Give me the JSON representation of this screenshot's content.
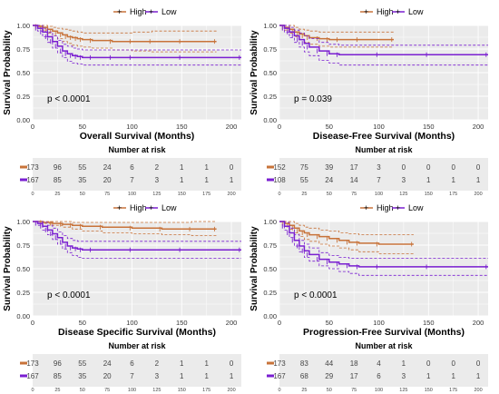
{
  "legend": {
    "entries": [
      {
        "label": "High",
        "color": "#c8733a"
      },
      {
        "label": "Low",
        "color": "#7a1fd1"
      }
    ]
  },
  "risk_table_title": "Number at risk",
  "chart_data": [
    {
      "type": "line",
      "title": "",
      "xlabel": "Overall Survival (Months)",
      "ylabel": "Survival Probability",
      "xlim": [
        0,
        210
      ],
      "ylim": [
        0,
        1.0
      ],
      "x_ticks": [
        0,
        50,
        100,
        150,
        200
      ],
      "y_ticks": [
        "0.00",
        "0.25",
        "0.50",
        "0.75",
        "1.00"
      ],
      "p_value": "p < 0.0001",
      "series": [
        {
          "name": "High",
          "color": "#c8733a",
          "x": [
            0,
            5,
            10,
            15,
            20,
            25,
            30,
            35,
            40,
            45,
            50,
            60,
            80,
            100,
            120,
            150,
            185
          ],
          "y": [
            1.0,
            0.99,
            0.98,
            0.96,
            0.94,
            0.92,
            0.9,
            0.88,
            0.87,
            0.86,
            0.85,
            0.84,
            0.83,
            0.83,
            0.83,
            0.83,
            0.83
          ],
          "upper": [
            1.0,
            1.0,
            1.0,
            0.99,
            0.98,
            0.97,
            0.96,
            0.95,
            0.94,
            0.93,
            0.92,
            0.92,
            0.92,
            0.93,
            0.94,
            0.94,
            0.94
          ],
          "lower": [
            1.0,
            0.97,
            0.95,
            0.92,
            0.89,
            0.86,
            0.83,
            0.81,
            0.79,
            0.78,
            0.77,
            0.76,
            0.74,
            0.73,
            0.72,
            0.72,
            0.72
          ]
        },
        {
          "name": "Low",
          "color": "#7a1fd1",
          "x": [
            0,
            5,
            10,
            15,
            20,
            25,
            30,
            35,
            40,
            45,
            50,
            60,
            80,
            100,
            150,
            210
          ],
          "y": [
            1.0,
            0.97,
            0.93,
            0.88,
            0.83,
            0.78,
            0.73,
            0.7,
            0.68,
            0.67,
            0.66,
            0.66,
            0.66,
            0.66,
            0.66,
            0.66
          ],
          "upper": [
            1.0,
            1.0,
            0.97,
            0.93,
            0.89,
            0.84,
            0.8,
            0.78,
            0.76,
            0.75,
            0.74,
            0.74,
            0.74,
            0.74,
            0.74,
            0.74
          ],
          "lower": [
            1.0,
            0.94,
            0.88,
            0.82,
            0.76,
            0.71,
            0.66,
            0.62,
            0.6,
            0.59,
            0.58,
            0.58,
            0.58,
            0.58,
            0.58,
            0.58
          ]
        }
      ],
      "risk_table": {
        "times": [
          0,
          25,
          50,
          75,
          100,
          125,
          150,
          175,
          200
        ],
        "rows": [
          {
            "group": "High",
            "color": "#c8733a",
            "counts": [
              173,
              96,
              55,
              24,
              6,
              2,
              1,
              1,
              0
            ]
          },
          {
            "group": "Low",
            "color": "#7a1fd1",
            "counts": [
              167,
              85,
              35,
              20,
              7,
              3,
              1,
              1,
              1
            ]
          }
        ]
      }
    },
    {
      "type": "line",
      "title": "",
      "xlabel": "Disease-Free Survival (Months)",
      "ylabel": "Survival Probability",
      "xlim": [
        0,
        210
      ],
      "ylim": [
        0,
        1.0
      ],
      "x_ticks": [
        0,
        50,
        100,
        150,
        200
      ],
      "y_ticks": [
        "0.00",
        "0.25",
        "0.50",
        "0.75",
        "1.00"
      ],
      "p_value": "p = 0.039",
      "series": [
        {
          "name": "High",
          "color": "#c8733a",
          "x": [
            0,
            5,
            10,
            15,
            20,
            25,
            30,
            40,
            50,
            60,
            80,
            115
          ],
          "y": [
            1.0,
            0.98,
            0.96,
            0.93,
            0.91,
            0.89,
            0.87,
            0.86,
            0.85,
            0.85,
            0.85,
            0.85
          ],
          "upper": [
            1.0,
            1.0,
            1.0,
            0.98,
            0.96,
            0.95,
            0.94,
            0.93,
            0.93,
            0.93,
            0.93,
            0.93
          ],
          "lower": [
            1.0,
            0.95,
            0.92,
            0.88,
            0.85,
            0.82,
            0.8,
            0.78,
            0.77,
            0.77,
            0.77,
            0.77
          ]
        },
        {
          "name": "Low",
          "color": "#7a1fd1",
          "x": [
            0,
            5,
            10,
            15,
            20,
            25,
            30,
            40,
            50,
            60,
            100,
            150,
            210
          ],
          "y": [
            1.0,
            0.97,
            0.93,
            0.89,
            0.85,
            0.81,
            0.77,
            0.73,
            0.7,
            0.69,
            0.69,
            0.69,
            0.69
          ],
          "upper": [
            1.0,
            1.0,
            0.98,
            0.95,
            0.92,
            0.89,
            0.86,
            0.82,
            0.8,
            0.79,
            0.79,
            0.79,
            0.79
          ],
          "lower": [
            1.0,
            0.93,
            0.87,
            0.82,
            0.77,
            0.72,
            0.68,
            0.63,
            0.6,
            0.58,
            0.58,
            0.58,
            0.58
          ]
        }
      ],
      "risk_table": {
        "times": [
          0,
          25,
          50,
          75,
          100,
          125,
          150,
          175,
          200
        ],
        "rows": [
          {
            "group": "High",
            "color": "#c8733a",
            "counts": [
              152,
              75,
              39,
              17,
              3,
              0,
              0,
              0,
              0
            ]
          },
          {
            "group": "Low",
            "color": "#7a1fd1",
            "counts": [
              108,
              55,
              24,
              14,
              7,
              3,
              1,
              1,
              1
            ]
          }
        ]
      }
    },
    {
      "type": "line",
      "title": "",
      "xlabel": "Disease Specific Survival (Months)",
      "ylabel": "Survival Probability",
      "xlim": [
        0,
        210
      ],
      "ylim": [
        0,
        1.0
      ],
      "x_ticks": [
        0,
        50,
        100,
        150,
        200
      ],
      "y_ticks": [
        "0.00",
        "0.25",
        "0.50",
        "0.75",
        "1.00"
      ],
      "p_value": "p < 0.0001",
      "series": [
        {
          "name": "High",
          "color": "#c8733a",
          "x": [
            0,
            10,
            20,
            30,
            40,
            50,
            70,
            100,
            130,
            160,
            185
          ],
          "y": [
            1.0,
            0.99,
            0.98,
            0.97,
            0.96,
            0.95,
            0.94,
            0.93,
            0.92,
            0.92,
            0.92
          ],
          "upper": [
            1.0,
            1.0,
            1.0,
            1.0,
            0.99,
            0.99,
            0.99,
            0.99,
            0.99,
            1.0,
            1.0
          ],
          "lower": [
            1.0,
            0.98,
            0.96,
            0.94,
            0.92,
            0.9,
            0.88,
            0.87,
            0.86,
            0.85,
            0.85
          ]
        },
        {
          "name": "Low",
          "color": "#7a1fd1",
          "x": [
            0,
            5,
            10,
            15,
            20,
            25,
            30,
            35,
            40,
            45,
            50,
            60,
            100,
            150,
            210
          ],
          "y": [
            1.0,
            0.98,
            0.95,
            0.91,
            0.87,
            0.83,
            0.78,
            0.74,
            0.72,
            0.71,
            0.7,
            0.7,
            0.7,
            0.7,
            0.7
          ],
          "upper": [
            1.0,
            1.0,
            0.99,
            0.96,
            0.93,
            0.89,
            0.85,
            0.82,
            0.8,
            0.79,
            0.79,
            0.79,
            0.79,
            0.79,
            0.79
          ],
          "lower": [
            1.0,
            0.96,
            0.91,
            0.86,
            0.81,
            0.76,
            0.71,
            0.67,
            0.64,
            0.62,
            0.61,
            0.61,
            0.61,
            0.61,
            0.61
          ]
        }
      ],
      "risk_table": {
        "times": [
          0,
          25,
          50,
          75,
          100,
          125,
          150,
          175,
          200
        ],
        "rows": [
          {
            "group": "High",
            "color": "#c8733a",
            "counts": [
              173,
              96,
              55,
              24,
              6,
              2,
              1,
              1,
              0
            ]
          },
          {
            "group": "Low",
            "color": "#7a1fd1",
            "counts": [
              167,
              85,
              35,
              20,
              7,
              3,
              1,
              1,
              1
            ]
          }
        ]
      }
    },
    {
      "type": "line",
      "title": "",
      "xlabel": "Progression-Free Survival (Months)",
      "ylabel": "Survival Probability",
      "xlim": [
        0,
        210
      ],
      "ylim": [
        0,
        1.0
      ],
      "x_ticks": [
        0,
        50,
        100,
        150,
        200
      ],
      "y_ticks": [
        "0.00",
        "0.25",
        "0.50",
        "0.75",
        "1.00"
      ],
      "p_value": "p < 0.0001",
      "series": [
        {
          "name": "High",
          "color": "#c8733a",
          "x": [
            0,
            5,
            10,
            15,
            20,
            25,
            30,
            40,
            50,
            60,
            70,
            80,
            100,
            135
          ],
          "y": [
            1.0,
            0.98,
            0.96,
            0.93,
            0.9,
            0.88,
            0.86,
            0.84,
            0.82,
            0.8,
            0.78,
            0.77,
            0.76,
            0.76
          ],
          "upper": [
            1.0,
            1.0,
            1.0,
            0.98,
            0.96,
            0.94,
            0.93,
            0.91,
            0.9,
            0.88,
            0.87,
            0.86,
            0.86,
            0.86
          ],
          "lower": [
            1.0,
            0.95,
            0.92,
            0.88,
            0.84,
            0.81,
            0.79,
            0.76,
            0.74,
            0.72,
            0.7,
            0.68,
            0.66,
            0.66
          ]
        },
        {
          "name": "Low",
          "color": "#7a1fd1",
          "x": [
            0,
            5,
            10,
            15,
            20,
            25,
            30,
            40,
            50,
            60,
            70,
            80,
            100,
            150,
            210
          ],
          "y": [
            1.0,
            0.95,
            0.88,
            0.8,
            0.74,
            0.69,
            0.65,
            0.6,
            0.57,
            0.55,
            0.53,
            0.52,
            0.52,
            0.52,
            0.52
          ],
          "upper": [
            1.0,
            0.99,
            0.93,
            0.86,
            0.8,
            0.76,
            0.72,
            0.67,
            0.64,
            0.62,
            0.61,
            0.61,
            0.61,
            0.61,
            0.61
          ],
          "lower": [
            1.0,
            0.91,
            0.83,
            0.74,
            0.68,
            0.62,
            0.58,
            0.53,
            0.5,
            0.47,
            0.45,
            0.43,
            0.43,
            0.43,
            0.43
          ]
        }
      ],
      "risk_table": {
        "times": [
          0,
          25,
          50,
          75,
          100,
          125,
          150,
          175,
          200
        ],
        "rows": [
          {
            "group": "High",
            "color": "#c8733a",
            "counts": [
              173,
              83,
              44,
              18,
              4,
              1,
              0,
              0,
              0
            ]
          },
          {
            "group": "Low",
            "color": "#7a1fd1",
            "counts": [
              167,
              68,
              29,
              17,
              6,
              3,
              1,
              1,
              1
            ]
          }
        ]
      }
    }
  ]
}
